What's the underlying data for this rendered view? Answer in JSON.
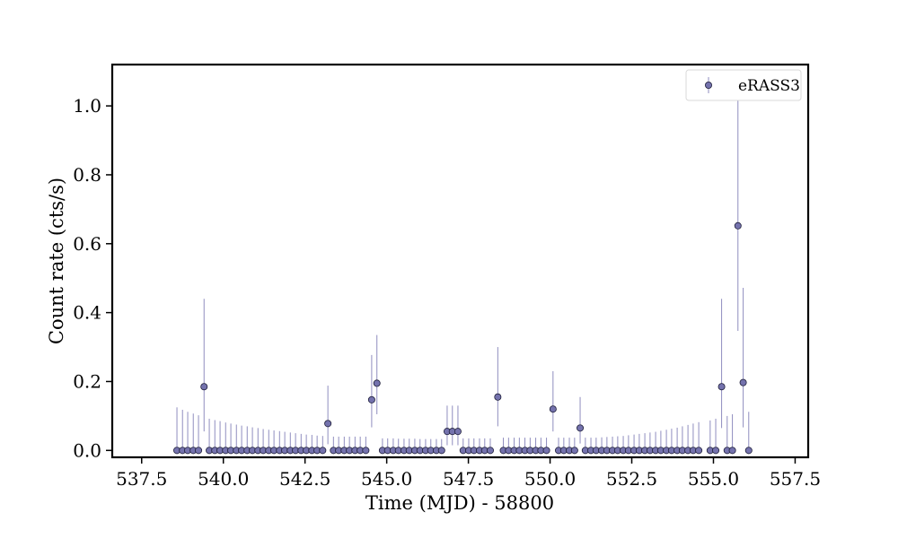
{
  "chart_data": {
    "type": "scatter",
    "xlabel": "Time (MJD) - 58800",
    "ylabel": "Count rate (cts/s)",
    "xlim": [
      536.6,
      557.9
    ],
    "ylim": [
      -0.02,
      1.12
    ],
    "xticks": [
      "537.5",
      "540.0",
      "542.5",
      "545.0",
      "547.5",
      "550.0",
      "552.5",
      "555.0",
      "557.5"
    ],
    "yticks": [
      "0.0",
      "0.2",
      "0.4",
      "0.6",
      "0.8",
      "1.0"
    ],
    "legend": {
      "position": "top-right",
      "entries": [
        "eRASS3"
      ]
    },
    "grid": false,
    "colors": {
      "marker_fill": "#7472ad",
      "marker_edge": "#1f1f3a",
      "errorbar": "#8f8dbf"
    },
    "series": [
      {
        "name": "eRASS3",
        "points": [
          {
            "x": 538.58,
            "y": 0.0,
            "yerr_hi": 0.125
          },
          {
            "x": 538.75,
            "y": 0.0,
            "yerr_hi": 0.118
          },
          {
            "x": 538.91,
            "y": 0.0,
            "yerr_hi": 0.112
          },
          {
            "x": 539.08,
            "y": 0.0,
            "yerr_hi": 0.107
          },
          {
            "x": 539.24,
            "y": 0.0,
            "yerr_hi": 0.102
          },
          {
            "x": 539.41,
            "y": 0.185,
            "yerr_lo": 0.13,
            "yerr_hi": 0.255
          },
          {
            "x": 539.57,
            "y": 0.0,
            "yerr_hi": 0.092
          },
          {
            "x": 539.74,
            "y": 0.0,
            "yerr_hi": 0.088
          },
          {
            "x": 539.9,
            "y": 0.0,
            "yerr_hi": 0.085
          },
          {
            "x": 540.07,
            "y": 0.0,
            "yerr_hi": 0.081
          },
          {
            "x": 540.23,
            "y": 0.0,
            "yerr_hi": 0.078
          },
          {
            "x": 540.4,
            "y": 0.0,
            "yerr_hi": 0.075
          },
          {
            "x": 540.56,
            "y": 0.0,
            "yerr_hi": 0.072
          },
          {
            "x": 540.73,
            "y": 0.0,
            "yerr_hi": 0.07
          },
          {
            "x": 540.89,
            "y": 0.0,
            "yerr_hi": 0.067
          },
          {
            "x": 541.06,
            "y": 0.0,
            "yerr_hi": 0.065
          },
          {
            "x": 541.22,
            "y": 0.0,
            "yerr_hi": 0.062
          },
          {
            "x": 541.39,
            "y": 0.0,
            "yerr_hi": 0.06
          },
          {
            "x": 541.55,
            "y": 0.0,
            "yerr_hi": 0.058
          },
          {
            "x": 541.72,
            "y": 0.0,
            "yerr_hi": 0.056
          },
          {
            "x": 541.88,
            "y": 0.0,
            "yerr_hi": 0.054
          },
          {
            "x": 542.05,
            "y": 0.0,
            "yerr_hi": 0.052
          },
          {
            "x": 542.21,
            "y": 0.0,
            "yerr_hi": 0.05
          },
          {
            "x": 542.38,
            "y": 0.0,
            "yerr_hi": 0.048
          },
          {
            "x": 542.54,
            "y": 0.0,
            "yerr_hi": 0.046
          },
          {
            "x": 542.71,
            "y": 0.0,
            "yerr_hi": 0.045
          },
          {
            "x": 542.87,
            "y": 0.0,
            "yerr_hi": 0.043
          },
          {
            "x": 543.04,
            "y": 0.0,
            "yerr_hi": 0.042
          },
          {
            "x": 543.2,
            "y": 0.078,
            "yerr_lo": 0.06,
            "yerr_hi": 0.11
          },
          {
            "x": 543.37,
            "y": 0.0,
            "yerr_hi": 0.04
          },
          {
            "x": 543.53,
            "y": 0.0,
            "yerr_hi": 0.04
          },
          {
            "x": 543.7,
            "y": 0.0,
            "yerr_hi": 0.04
          },
          {
            "x": 543.86,
            "y": 0.0,
            "yerr_hi": 0.04
          },
          {
            "x": 544.03,
            "y": 0.0,
            "yerr_hi": 0.04
          },
          {
            "x": 544.19,
            "y": 0.0,
            "yerr_hi": 0.04
          },
          {
            "x": 544.36,
            "y": 0.0,
            "yerr_hi": 0.04
          },
          {
            "x": 544.54,
            "y": 0.147,
            "yerr_lo": 0.08,
            "yerr_hi": 0.13
          },
          {
            "x": 544.7,
            "y": 0.195,
            "yerr_lo": 0.09,
            "yerr_hi": 0.14
          },
          {
            "x": 544.87,
            "y": 0.0,
            "yerr_hi": 0.035
          },
          {
            "x": 545.03,
            "y": 0.0,
            "yerr_hi": 0.035
          },
          {
            "x": 545.2,
            "y": 0.0,
            "yerr_hi": 0.035
          },
          {
            "x": 545.36,
            "y": 0.0,
            "yerr_hi": 0.034
          },
          {
            "x": 545.53,
            "y": 0.0,
            "yerr_hi": 0.034
          },
          {
            "x": 545.69,
            "y": 0.0,
            "yerr_hi": 0.034
          },
          {
            "x": 545.86,
            "y": 0.0,
            "yerr_hi": 0.034
          },
          {
            "x": 546.02,
            "y": 0.0,
            "yerr_hi": 0.033
          },
          {
            "x": 546.19,
            "y": 0.0,
            "yerr_hi": 0.033
          },
          {
            "x": 546.35,
            "y": 0.0,
            "yerr_hi": 0.033
          },
          {
            "x": 546.52,
            "y": 0.0,
            "yerr_hi": 0.033
          },
          {
            "x": 546.68,
            "y": 0.0,
            "yerr_hi": 0.033
          },
          {
            "x": 546.85,
            "y": 0.055,
            "yerr_lo": 0.04,
            "yerr_hi": 0.075
          },
          {
            "x": 547.01,
            "y": 0.055,
            "yerr_lo": 0.04,
            "yerr_hi": 0.075
          },
          {
            "x": 547.18,
            "y": 0.055,
            "yerr_lo": 0.04,
            "yerr_hi": 0.075
          },
          {
            "x": 547.34,
            "y": 0.0,
            "yerr_hi": 0.035
          },
          {
            "x": 547.51,
            "y": 0.0,
            "yerr_hi": 0.035
          },
          {
            "x": 547.67,
            "y": 0.0,
            "yerr_hi": 0.035
          },
          {
            "x": 547.84,
            "y": 0.0,
            "yerr_hi": 0.035
          },
          {
            "x": 548.0,
            "y": 0.0,
            "yerr_hi": 0.035
          },
          {
            "x": 548.17,
            "y": 0.0,
            "yerr_hi": 0.035
          },
          {
            "x": 548.4,
            "y": 0.155,
            "yerr_lo": 0.085,
            "yerr_hi": 0.145
          },
          {
            "x": 548.57,
            "y": 0.0,
            "yerr_hi": 0.037
          },
          {
            "x": 548.73,
            "y": 0.0,
            "yerr_hi": 0.037
          },
          {
            "x": 548.9,
            "y": 0.0,
            "yerr_hi": 0.037
          },
          {
            "x": 549.06,
            "y": 0.0,
            "yerr_hi": 0.037
          },
          {
            "x": 549.23,
            "y": 0.0,
            "yerr_hi": 0.037
          },
          {
            "x": 549.39,
            "y": 0.0,
            "yerr_hi": 0.037
          },
          {
            "x": 549.56,
            "y": 0.0,
            "yerr_hi": 0.037
          },
          {
            "x": 549.72,
            "y": 0.0,
            "yerr_hi": 0.037
          },
          {
            "x": 549.89,
            "y": 0.0,
            "yerr_hi": 0.037
          },
          {
            "x": 550.09,
            "y": 0.12,
            "yerr_lo": 0.065,
            "yerr_hi": 0.11
          },
          {
            "x": 550.26,
            "y": 0.0,
            "yerr_hi": 0.037
          },
          {
            "x": 550.42,
            "y": 0.0,
            "yerr_hi": 0.037
          },
          {
            "x": 550.59,
            "y": 0.0,
            "yerr_hi": 0.037
          },
          {
            "x": 550.75,
            "y": 0.0,
            "yerr_hi": 0.037
          },
          {
            "x": 550.92,
            "y": 0.065,
            "yerr_lo": 0.045,
            "yerr_hi": 0.09
          },
          {
            "x": 551.08,
            "y": 0.0,
            "yerr_hi": 0.037
          },
          {
            "x": 551.25,
            "y": 0.0,
            "yerr_hi": 0.037
          },
          {
            "x": 551.41,
            "y": 0.0,
            "yerr_hi": 0.037
          },
          {
            "x": 551.58,
            "y": 0.0,
            "yerr_hi": 0.038
          },
          {
            "x": 551.74,
            "y": 0.0,
            "yerr_hi": 0.039
          },
          {
            "x": 551.91,
            "y": 0.0,
            "yerr_hi": 0.04
          },
          {
            "x": 552.07,
            "y": 0.0,
            "yerr_hi": 0.041
          },
          {
            "x": 552.24,
            "y": 0.0,
            "yerr_hi": 0.042
          },
          {
            "x": 552.4,
            "y": 0.0,
            "yerr_hi": 0.044
          },
          {
            "x": 552.57,
            "y": 0.0,
            "yerr_hi": 0.046
          },
          {
            "x": 552.73,
            "y": 0.0,
            "yerr_hi": 0.048
          },
          {
            "x": 552.9,
            "y": 0.0,
            "yerr_hi": 0.05
          },
          {
            "x": 553.06,
            "y": 0.0,
            "yerr_hi": 0.052
          },
          {
            "x": 553.23,
            "y": 0.0,
            "yerr_hi": 0.054
          },
          {
            "x": 553.39,
            "y": 0.0,
            "yerr_hi": 0.057
          },
          {
            "x": 553.56,
            "y": 0.0,
            "yerr_hi": 0.06
          },
          {
            "x": 553.72,
            "y": 0.0,
            "yerr_hi": 0.063
          },
          {
            "x": 553.89,
            "y": 0.0,
            "yerr_hi": 0.066
          },
          {
            "x": 554.05,
            "y": 0.0,
            "yerr_hi": 0.07
          },
          {
            "x": 554.22,
            "y": 0.0,
            "yerr_hi": 0.074
          },
          {
            "x": 554.38,
            "y": 0.0,
            "yerr_hi": 0.078
          },
          {
            "x": 554.55,
            "y": 0.0,
            "yerr_hi": 0.082
          },
          {
            "x": 554.9,
            "y": 0.0,
            "yerr_hi": 0.087
          },
          {
            "x": 555.07,
            "y": 0.0,
            "yerr_hi": 0.092
          },
          {
            "x": 555.25,
            "y": 0.185,
            "yerr_lo": 0.12,
            "yerr_hi": 0.255
          },
          {
            "x": 555.42,
            "y": 0.0,
            "yerr_hi": 0.1
          },
          {
            "x": 555.58,
            "y": 0.0,
            "yerr_hi": 0.105
          },
          {
            "x": 555.75,
            "y": 0.652,
            "yerr_lo": 0.305,
            "yerr_hi": 0.45
          },
          {
            "x": 555.91,
            "y": 0.197,
            "yerr_lo": 0.13,
            "yerr_hi": 0.275
          },
          {
            "x": 556.08,
            "y": 0.0,
            "yerr_hi": 0.112
          }
        ]
      }
    ]
  }
}
